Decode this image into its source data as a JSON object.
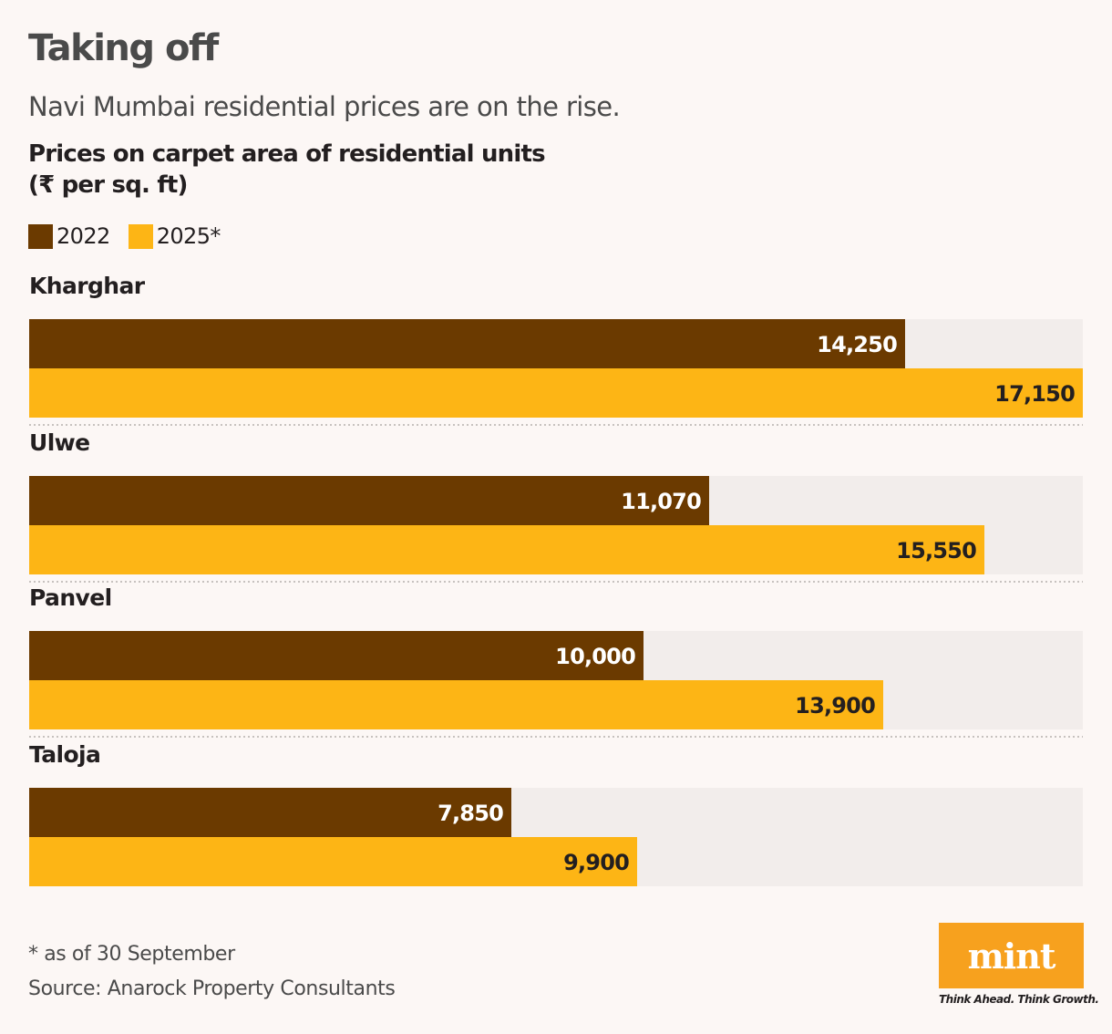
{
  "chart_data": {
    "type": "bar",
    "orientation": "horizontal",
    "title": "Taking off",
    "subtitle": "Navi Mumbai residential prices are on the rise.",
    "ylabel_lines": [
      "Prices on carpet area of residential units",
      "(₹ per sq. ft)"
    ],
    "categories": [
      "Kharghar",
      "Ulwe",
      "Panvel",
      "Taloja"
    ],
    "series": [
      {
        "name": "2022",
        "color": "#6b3a00",
        "values": [
          14250,
          11070,
          10000,
          7850
        ],
        "labels": [
          "14,250",
          "11,070",
          "10,000",
          "7,850"
        ]
      },
      {
        "name": "2025*",
        "color": "#fdb515",
        "values": [
          17150,
          15550,
          13900,
          9900
        ],
        "labels": [
          "17,150",
          "15,550",
          "13,900",
          "9,900"
        ]
      }
    ],
    "xlim": [
      0,
      17150
    ],
    "legend_position": "top-left",
    "grid": false,
    "track_color": "#f2edeb"
  },
  "footnote": "* as of 30 September",
  "source": "Source: Anarock Property Consultants",
  "logo": {
    "word": "mint",
    "tagline": "Think Ahead. Think Growth.",
    "color": "#f7a11e"
  }
}
